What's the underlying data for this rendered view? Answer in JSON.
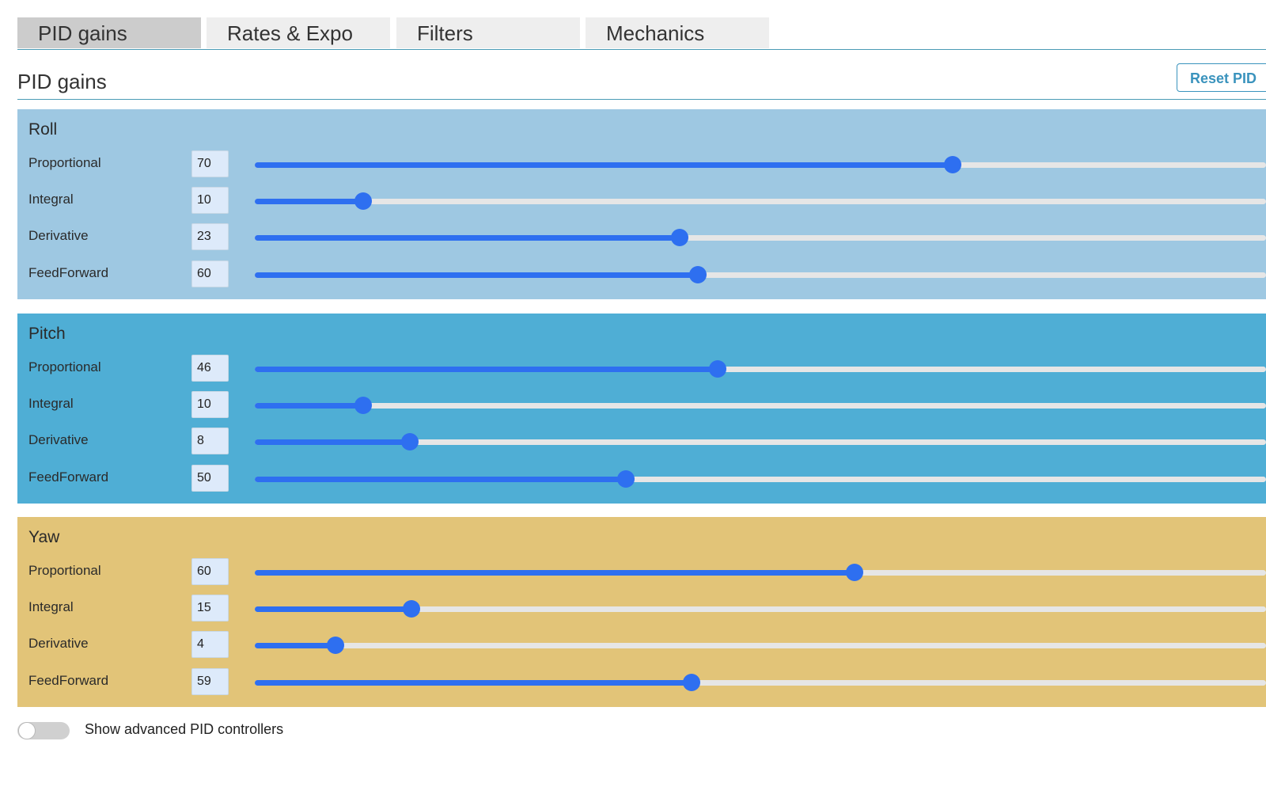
{
  "tabs": [
    {
      "label": "PID gains",
      "active": true
    },
    {
      "label": "Rates & Expo",
      "active": false
    },
    {
      "label": "Filters",
      "active": false
    },
    {
      "label": "Mechanics",
      "active": false
    }
  ],
  "section": {
    "title": "PID gains",
    "reset_label": "Reset PID"
  },
  "slider_max_fraction_note": "",
  "panels": [
    {
      "title": "Roll",
      "color": "#9ec8e2",
      "rows": [
        {
          "label": "Proportional",
          "value": "70",
          "level": 0.69
        },
        {
          "label": "Integral",
          "value": "10",
          "level": 0.107
        },
        {
          "label": "Derivative",
          "value": "23",
          "level": 0.42
        },
        {
          "label": "FeedForward",
          "value": "60",
          "level": 0.438
        }
      ]
    },
    {
      "title": "Pitch",
      "color": "#4faed5",
      "rows": [
        {
          "label": "Proportional",
          "value": "46",
          "level": 0.458
        },
        {
          "label": "Integral",
          "value": "10",
          "level": 0.107
        },
        {
          "label": "Derivative",
          "value": "8",
          "level": 0.153
        },
        {
          "label": "FeedForward",
          "value": "50",
          "level": 0.367
        }
      ]
    },
    {
      "title": "Yaw",
      "color": "#e2c478",
      "rows": [
        {
          "label": "Proportional",
          "value": "60",
          "level": 0.593
        },
        {
          "label": "Integral",
          "value": "15",
          "level": 0.155
        },
        {
          "label": "Derivative",
          "value": "4",
          "level": 0.08
        },
        {
          "label": "FeedForward",
          "value": "59",
          "level": 0.432
        }
      ]
    }
  ],
  "advanced_toggle": {
    "label": "Show advanced PID controllers",
    "on": false
  },
  "accent_color": "#2e6ff0"
}
